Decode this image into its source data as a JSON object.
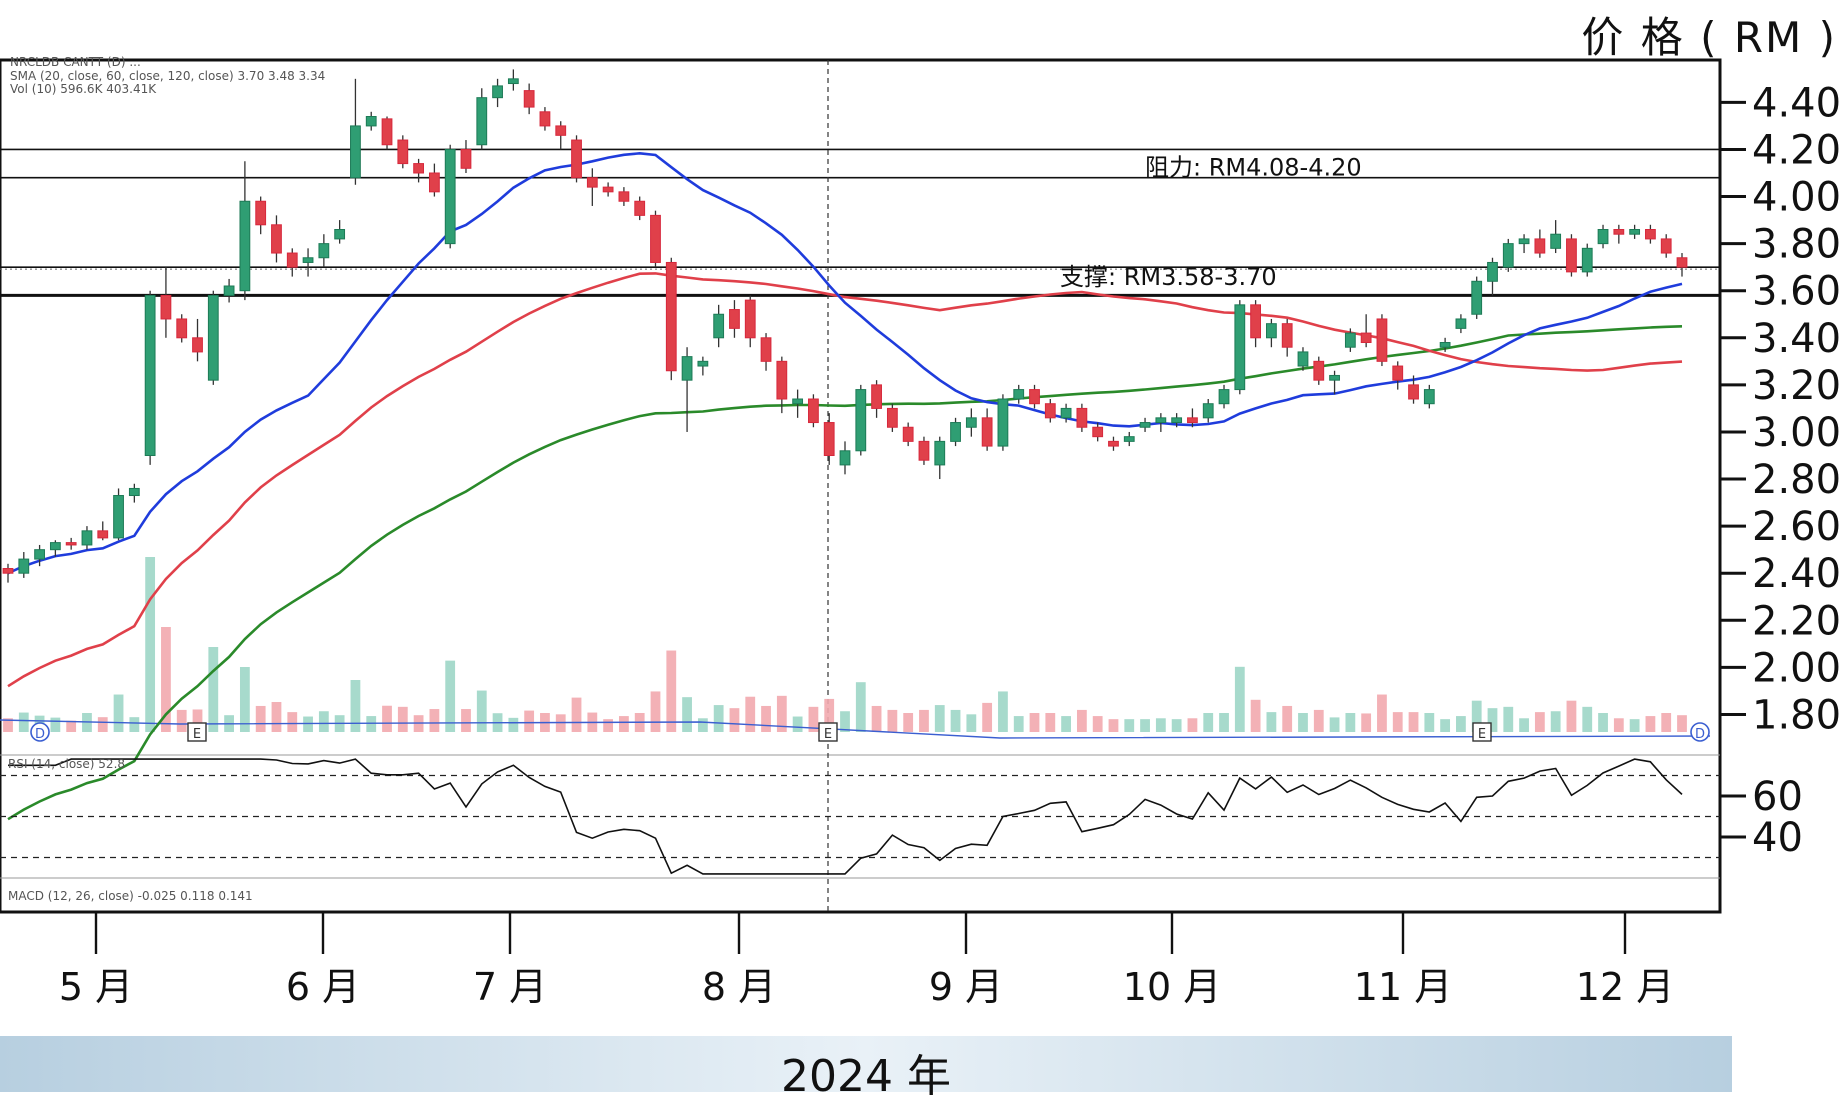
{
  "chart_data": {
    "type": "candlestick",
    "unit_label": "价 格 ( RM )",
    "year_label": "2024 年",
    "price_axis": {
      "ylim": [
        1.7,
        4.58
      ],
      "ticks": [
        "4.40",
        "4.20",
        "4.00",
        "3.80",
        "3.60",
        "3.40",
        "3.20",
        "3.00",
        "2.80",
        "2.60",
        "2.40",
        "2.20",
        "2.00",
        "1.80"
      ]
    },
    "rsi_axis": {
      "ticks": [
        "60",
        "40"
      ],
      "levels": [
        70,
        50,
        30
      ]
    },
    "months": [
      "5 月",
      "6 月",
      "7 月",
      "8 月",
      "9 月",
      "10 月",
      "11 月",
      "12 月"
    ],
    "indicator_legend": {
      "header": "NRCLDB CANTT (D) ...",
      "sma": "SMA (20, close, 60, close, 120, close)",
      "sma_values": [
        "3.70",
        "3.48",
        "3.34"
      ],
      "vol": "Vol (10)",
      "vol_values": [
        "596.6K",
        "403.41K"
      ],
      "rsi": "RSI (14, close)",
      "rsi_value": "52.8",
      "macd": "MACD (12, 26, close)",
      "macd_values": [
        "-0.025",
        "0.118",
        "0.141"
      ]
    },
    "annotations": [
      {
        "text": "阻力: RM4.08-4.20",
        "levels": [
          4.08,
          4.2
        ]
      },
      {
        "text": "支撑: RM3.58-3.70",
        "levels": [
          3.58,
          3.7
        ]
      }
    ],
    "event_markers": [
      "D",
      "E",
      "E",
      "E",
      "D"
    ],
    "candles": [
      [
        2.42,
        2.44,
        2.36,
        2.4
      ],
      [
        2.4,
        2.49,
        2.38,
        2.46
      ],
      [
        2.46,
        2.52,
        2.43,
        2.5
      ],
      [
        2.5,
        2.54,
        2.47,
        2.53
      ],
      [
        2.53,
        2.55,
        2.5,
        2.52
      ],
      [
        2.52,
        2.6,
        2.5,
        2.58
      ],
      [
        2.58,
        2.62,
        2.54,
        2.55
      ],
      [
        2.55,
        2.76,
        2.54,
        2.73
      ],
      [
        2.73,
        2.78,
        2.7,
        2.76
      ],
      [
        2.9,
        3.6,
        2.86,
        3.58
      ],
      [
        3.58,
        3.7,
        3.4,
        3.48
      ],
      [
        3.48,
        3.5,
        3.38,
        3.4
      ],
      [
        3.4,
        3.48,
        3.3,
        3.34
      ],
      [
        3.22,
        3.6,
        3.2,
        3.58
      ],
      [
        3.58,
        3.65,
        3.55,
        3.62
      ],
      [
        3.6,
        4.15,
        3.56,
        3.98
      ],
      [
        3.98,
        4.0,
        3.84,
        3.88
      ],
      [
        3.88,
        3.92,
        3.72,
        3.76
      ],
      [
        3.76,
        3.78,
        3.66,
        3.7
      ],
      [
        3.72,
        3.78,
        3.66,
        3.74
      ],
      [
        3.74,
        3.84,
        3.7,
        3.8
      ],
      [
        3.82,
        3.9,
        3.8,
        3.86
      ],
      [
        4.08,
        4.5,
        4.05,
        4.3
      ],
      [
        4.3,
        4.36,
        4.28,
        4.34
      ],
      [
        4.33,
        4.34,
        4.2,
        4.22
      ],
      [
        4.24,
        4.26,
        4.12,
        4.14
      ],
      [
        4.14,
        4.16,
        4.06,
        4.1
      ],
      [
        4.1,
        4.14,
        4.0,
        4.02
      ],
      [
        3.8,
        4.22,
        3.78,
        4.2
      ],
      [
        4.2,
        4.24,
        4.1,
        4.12
      ],
      [
        4.22,
        4.46,
        4.2,
        4.42
      ],
      [
        4.42,
        4.5,
        4.38,
        4.47
      ],
      [
        4.48,
        4.54,
        4.45,
        4.5
      ],
      [
        4.45,
        4.48,
        4.35,
        4.38
      ],
      [
        4.36,
        4.38,
        4.28,
        4.3
      ],
      [
        4.3,
        4.32,
        4.2,
        4.26
      ],
      [
        4.24,
        4.26,
        4.06,
        4.08
      ],
      [
        4.08,
        4.12,
        3.96,
        4.04
      ],
      [
        4.04,
        4.06,
        4.0,
        4.02
      ],
      [
        4.02,
        4.04,
        3.96,
        3.98
      ],
      [
        3.98,
        4.0,
        3.9,
        3.92
      ],
      [
        3.92,
        3.94,
        3.7,
        3.72
      ],
      [
        3.72,
        3.74,
        3.22,
        3.26
      ],
      [
        3.22,
        3.36,
        3.0,
        3.32
      ],
      [
        3.28,
        3.32,
        3.24,
        3.3
      ],
      [
        3.4,
        3.54,
        3.36,
        3.5
      ],
      [
        3.52,
        3.56,
        3.4,
        3.44
      ],
      [
        3.56,
        3.58,
        3.36,
        3.4
      ],
      [
        3.4,
        3.42,
        3.26,
        3.3
      ],
      [
        3.3,
        3.32,
        3.08,
        3.14
      ],
      [
        3.12,
        3.18,
        3.06,
        3.14
      ],
      [
        3.14,
        3.16,
        3.02,
        3.04
      ],
      [
        3.04,
        3.08,
        2.86,
        2.9
      ],
      [
        2.86,
        2.96,
        2.82,
        2.92
      ],
      [
        2.92,
        3.2,
        2.9,
        3.18
      ],
      [
        3.2,
        3.22,
        3.06,
        3.1
      ],
      [
        3.1,
        3.12,
        3.0,
        3.02
      ],
      [
        3.02,
        3.04,
        2.94,
        2.96
      ],
      [
        2.96,
        2.98,
        2.86,
        2.88
      ],
      [
        2.86,
        2.98,
        2.8,
        2.96
      ],
      [
        2.96,
        3.06,
        2.94,
        3.04
      ],
      [
        3.02,
        3.1,
        2.98,
        3.06
      ],
      [
        3.06,
        3.1,
        2.92,
        2.94
      ],
      [
        2.94,
        3.16,
        2.92,
        3.14
      ],
      [
        3.14,
        3.2,
        3.12,
        3.18
      ],
      [
        3.18,
        3.2,
        3.1,
        3.12
      ],
      [
        3.12,
        3.14,
        3.04,
        3.06
      ],
      [
        3.06,
        3.12,
        3.04,
        3.1
      ],
      [
        3.1,
        3.12,
        3.0,
        3.02
      ],
      [
        3.02,
        3.04,
        2.96,
        2.98
      ],
      [
        2.96,
        2.98,
        2.92,
        2.94
      ],
      [
        2.96,
        3.0,
        2.94,
        2.98
      ],
      [
        3.02,
        3.06,
        3.0,
        3.04
      ],
      [
        3.04,
        3.08,
        3.0,
        3.06
      ],
      [
        3.04,
        3.08,
        3.02,
        3.06
      ],
      [
        3.06,
        3.1,
        3.02,
        3.04
      ],
      [
        3.06,
        3.14,
        3.04,
        3.12
      ],
      [
        3.12,
        3.2,
        3.1,
        3.18
      ],
      [
        3.18,
        3.56,
        3.16,
        3.54
      ],
      [
        3.54,
        3.56,
        3.36,
        3.4
      ],
      [
        3.4,
        3.48,
        3.36,
        3.46
      ],
      [
        3.46,
        3.48,
        3.32,
        3.36
      ],
      [
        3.28,
        3.36,
        3.26,
        3.34
      ],
      [
        3.3,
        3.32,
        3.2,
        3.22
      ],
      [
        3.22,
        3.26,
        3.16,
        3.24
      ],
      [
        3.36,
        3.44,
        3.34,
        3.42
      ],
      [
        3.42,
        3.5,
        3.36,
        3.38
      ],
      [
        3.48,
        3.5,
        3.28,
        3.3
      ],
      [
        3.28,
        3.3,
        3.18,
        3.22
      ],
      [
        3.2,
        3.24,
        3.12,
        3.14
      ],
      [
        3.12,
        3.2,
        3.1,
        3.18
      ],
      [
        3.36,
        3.4,
        3.34,
        3.38
      ],
      [
        3.44,
        3.5,
        3.42,
        3.48
      ],
      [
        3.5,
        3.66,
        3.48,
        3.64
      ],
      [
        3.64,
        3.74,
        3.58,
        3.72
      ],
      [
        3.7,
        3.82,
        3.68,
        3.8
      ],
      [
        3.8,
        3.84,
        3.76,
        3.82
      ],
      [
        3.82,
        3.86,
        3.74,
        3.76
      ],
      [
        3.78,
        3.9,
        3.76,
        3.84
      ],
      [
        3.82,
        3.84,
        3.66,
        3.68
      ],
      [
        3.68,
        3.8,
        3.66,
        3.78
      ],
      [
        3.8,
        3.88,
        3.78,
        3.86
      ],
      [
        3.86,
        3.88,
        3.8,
        3.84
      ],
      [
        3.84,
        3.88,
        3.82,
        3.86
      ],
      [
        3.86,
        3.88,
        3.8,
        3.82
      ],
      [
        3.82,
        3.84,
        3.74,
        3.76
      ],
      [
        3.74,
        3.76,
        3.66,
        3.7
      ]
    ]
  }
}
